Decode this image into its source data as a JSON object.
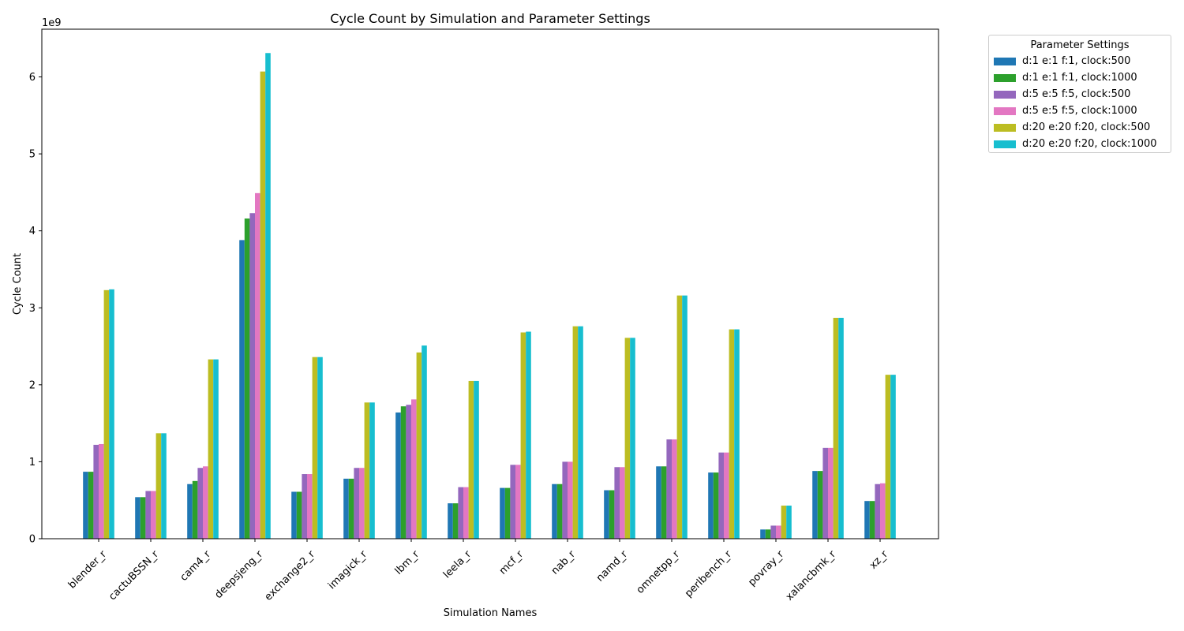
{
  "chart_data": {
    "type": "bar",
    "title": "Cycle Count by Simulation and Parameter Settings",
    "xlabel": "Simulation Names",
    "ylabel": "Cycle Count",
    "y_multiplier_label": "1e9",
    "ylim": [
      0,
      6.62
    ],
    "y_ticks": [
      0,
      1,
      2,
      3,
      4,
      5,
      6
    ],
    "y_unit_multiplier": 1000000000,
    "grid": false,
    "legend_title": "Parameter Settings",
    "legend_position": "outside-top-right",
    "categories": [
      "blender_r",
      "cactuBSSN_r",
      "cam4_r",
      "deepsjeng_r",
      "exchange2_r",
      "imagick_r",
      "lbm_r",
      "leela_r",
      "mcf_r",
      "nab_r",
      "namd_r",
      "omnetpp_r",
      "perlbench_r",
      "povray_r",
      "xalancbmk_r",
      "xz_r"
    ],
    "series": [
      {
        "name": "d:1 e:1 f:1, clock:500",
        "color": "#1f77b4",
        "values": [
          0.87,
          0.54,
          0.71,
          3.88,
          0.61,
          0.78,
          1.64,
          0.46,
          0.66,
          0.71,
          0.63,
          0.94,
          0.86,
          0.12,
          0.88,
          0.49
        ]
      },
      {
        "name": "d:1 e:1 f:1, clock:1000",
        "color": "#2ca02c",
        "values": [
          0.87,
          0.54,
          0.75,
          4.16,
          0.61,
          0.78,
          1.72,
          0.46,
          0.66,
          0.71,
          0.63,
          0.94,
          0.86,
          0.12,
          0.88,
          0.49
        ]
      },
      {
        "name": "d:5 e:5 f:5, clock:500",
        "color": "#9467bd",
        "values": [
          1.22,
          0.62,
          0.92,
          4.23,
          0.84,
          0.92,
          1.74,
          0.67,
          0.96,
          1.0,
          0.93,
          1.29,
          1.12,
          0.17,
          1.18,
          0.71
        ]
      },
      {
        "name": "d:5 e:5 f:5, clock:1000",
        "color": "#e377c2",
        "values": [
          1.23,
          0.62,
          0.94,
          4.49,
          0.84,
          0.92,
          1.81,
          0.67,
          0.96,
          1.0,
          0.93,
          1.29,
          1.12,
          0.17,
          1.18,
          0.72
        ]
      },
      {
        "name": "d:20 e:20 f:20, clock:500",
        "color": "#bcbd22",
        "values": [
          3.23,
          1.37,
          2.33,
          6.07,
          2.36,
          1.77,
          2.42,
          2.05,
          2.68,
          2.76,
          2.61,
          3.16,
          2.72,
          0.43,
          2.87,
          2.13
        ]
      },
      {
        "name": "d:20 e:20 f:20, clock:1000",
        "color": "#17becf",
        "values": [
          3.24,
          1.37,
          2.33,
          6.31,
          2.36,
          1.77,
          2.51,
          2.05,
          2.69,
          2.76,
          2.61,
          3.16,
          2.72,
          0.43,
          2.87,
          2.13
        ]
      }
    ]
  }
}
